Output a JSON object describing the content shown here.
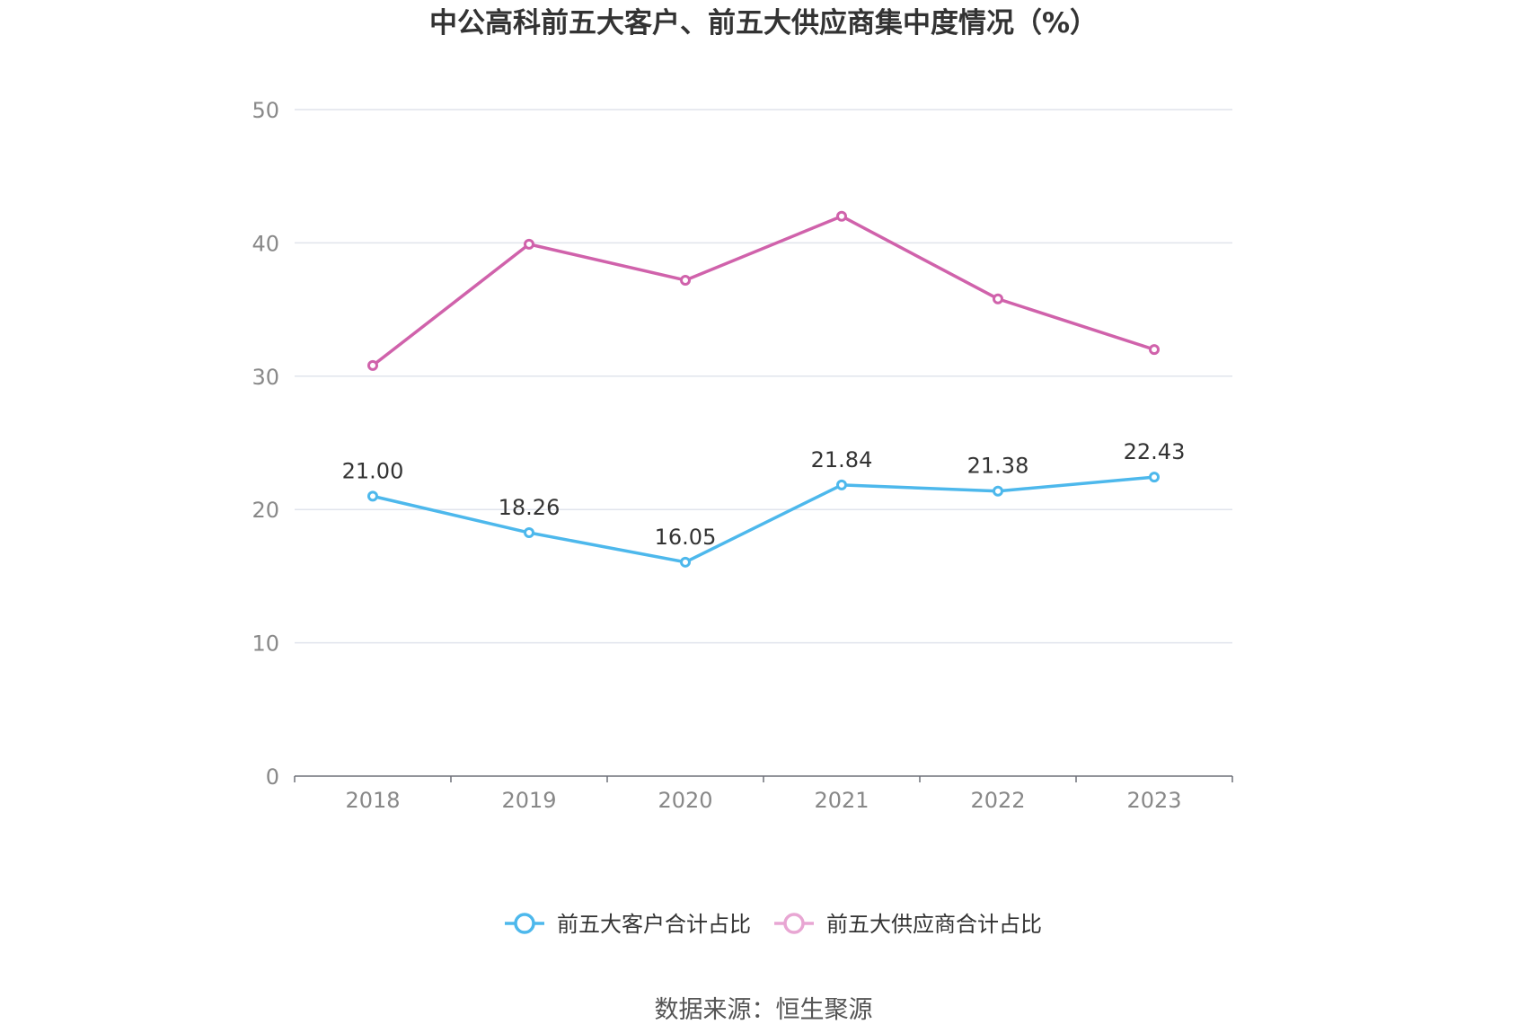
{
  "title": "中公高科前五大客户、前五大供应商集中度情况（%）",
  "source": "数据来源：恒生聚源",
  "chart_data": {
    "type": "line",
    "title": "中公高科前五大客户、前五大供应商集中度情况（%）",
    "x": [
      "2018",
      "2019",
      "2020",
      "2021",
      "2022",
      "2023"
    ],
    "ylim": [
      0,
      50
    ],
    "yticks": [
      0,
      10,
      20,
      30,
      40,
      50
    ],
    "grid": true,
    "legend_position": "bottom",
    "series": [
      {
        "name": "前五大客户合计占比",
        "values": [
          21.0,
          18.26,
          16.05,
          21.84,
          21.38,
          22.43
        ],
        "labels": [
          "21.00",
          "18.26",
          "16.05",
          "21.84",
          "21.38",
          "22.43"
        ],
        "color": "#4db8ec",
        "show_labels": true
      },
      {
        "name": "前五大供应商合计占比",
        "values": [
          30.8,
          39.9,
          37.2,
          42.0,
          35.8,
          32.0
        ],
        "color": "#d062ab",
        "legend_color": "#e8a6d3",
        "show_labels": false
      }
    ]
  }
}
